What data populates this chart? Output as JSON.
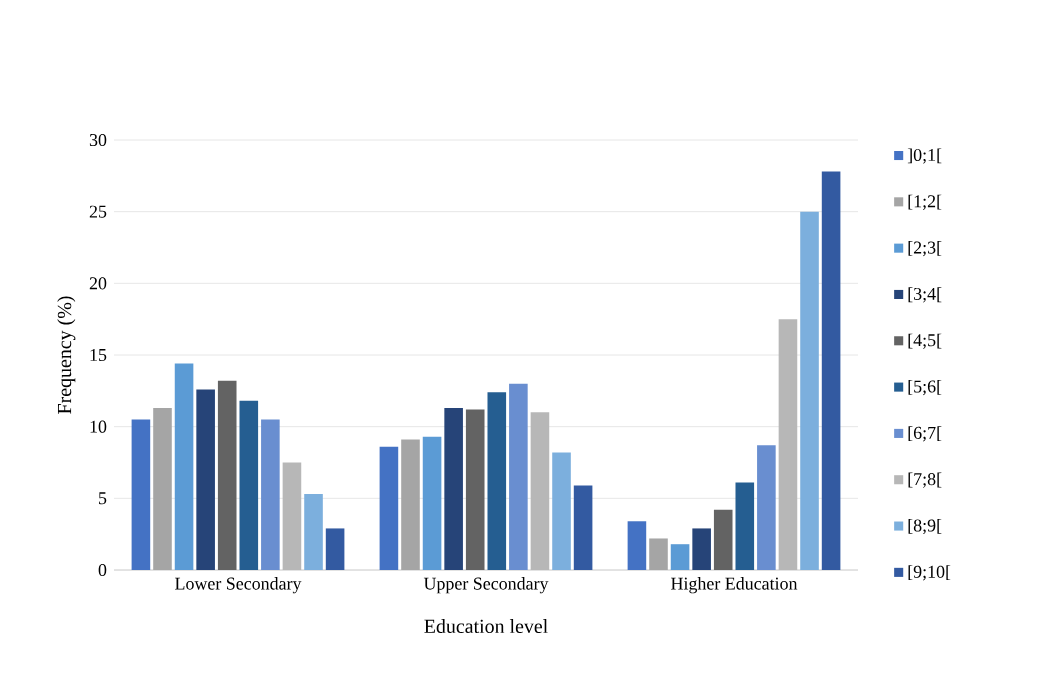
{
  "chart_data": {
    "type": "bar",
    "xlabel": "Education level",
    "ylabel": "Frequency (%)",
    "categories": [
      "Lower Secondary",
      "Upper Secondary",
      "Higher Education"
    ],
    "series": [
      {
        "name": "]0;1[",
        "color": "#4472c4",
        "values": [
          10.5,
          8.6,
          3.4
        ]
      },
      {
        "name": "[1;2[",
        "color": "#a5a5a5",
        "values": [
          11.3,
          9.1,
          2.2
        ]
      },
      {
        "name": "[2;3[",
        "color": "#5b9bd5",
        "values": [
          14.4,
          9.3,
          1.8
        ]
      },
      {
        "name": "[3;4[",
        "color": "#264478",
        "values": [
          12.6,
          11.3,
          2.9
        ]
      },
      {
        "name": "[4;5[",
        "color": "#636363",
        "values": [
          13.2,
          11.2,
          4.2
        ]
      },
      {
        "name": "[5;6[",
        "color": "#255e91",
        "values": [
          11.8,
          12.4,
          6.1
        ]
      },
      {
        "name": "[6;7[",
        "color": "#698ed0",
        "values": [
          10.5,
          13.0,
          8.7
        ]
      },
      {
        "name": "[7;8[",
        "color": "#b7b7b7",
        "values": [
          7.5,
          11.0,
          17.5
        ]
      },
      {
        "name": "[8;9[",
        "color": "#7cafdd",
        "values": [
          5.3,
          8.2,
          25.0
        ]
      },
      {
        "name": "[9;10[",
        "color": "#335aa1",
        "values": [
          2.9,
          5.9,
          27.8
        ]
      }
    ],
    "ylim": [
      0,
      30
    ],
    "yticks": [
      0,
      5,
      10,
      15,
      20,
      25,
      30
    ],
    "grid": "y",
    "legend": "right"
  }
}
